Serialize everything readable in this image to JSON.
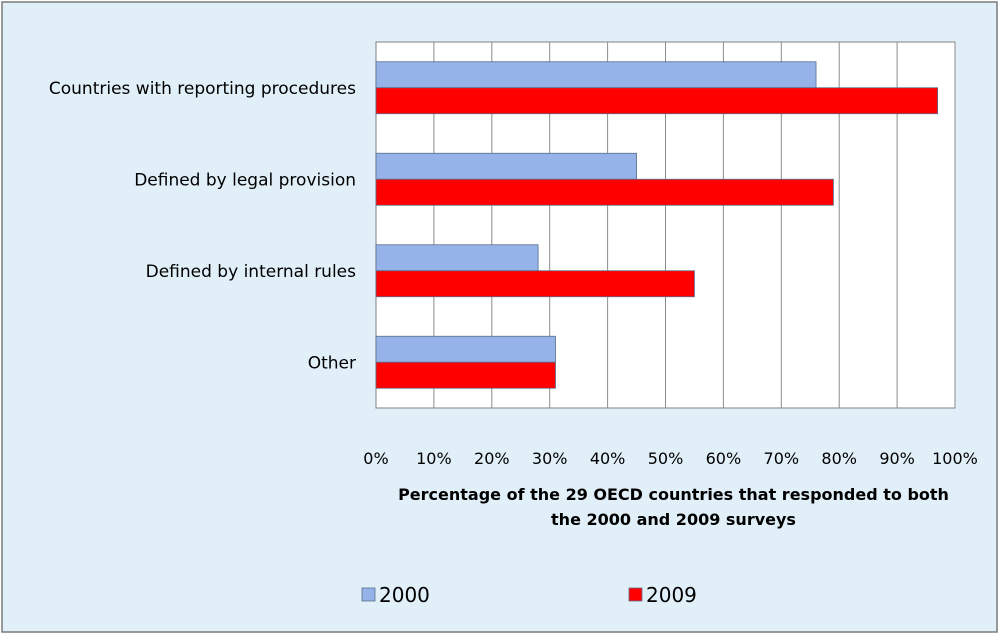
{
  "chart_data": {
    "type": "bar",
    "orientation": "horizontal",
    "categories": [
      "Countries with reporting procedures",
      "Defined by legal provision",
      "Defined by internal rules",
      "Other"
    ],
    "series": [
      {
        "name": "2000",
        "values": [
          76,
          45,
          28,
          31
        ],
        "color": "#95b3e8"
      },
      {
        "name": "2009",
        "values": [
          97,
          79,
          55,
          31
        ],
        "color": "#ff0000"
      }
    ],
    "xlabel": "Percentage of the 29 OECD countries that responded  to both the 2000 and 2009 surveys",
    "xlabel_lines": [
      "Percentage of the 29 OECD countries that responded  to both",
      "the 2000 and 2009 surveys"
    ],
    "ylabel": "",
    "xlim": [
      0,
      100
    ],
    "xticks": [
      0,
      10,
      20,
      30,
      40,
      50,
      60,
      70,
      80,
      90,
      100
    ],
    "tick_format": "%",
    "grid": "vertical",
    "legend": "bottom",
    "background": "#e1eff8",
    "plot_background": "#ffffff"
  }
}
